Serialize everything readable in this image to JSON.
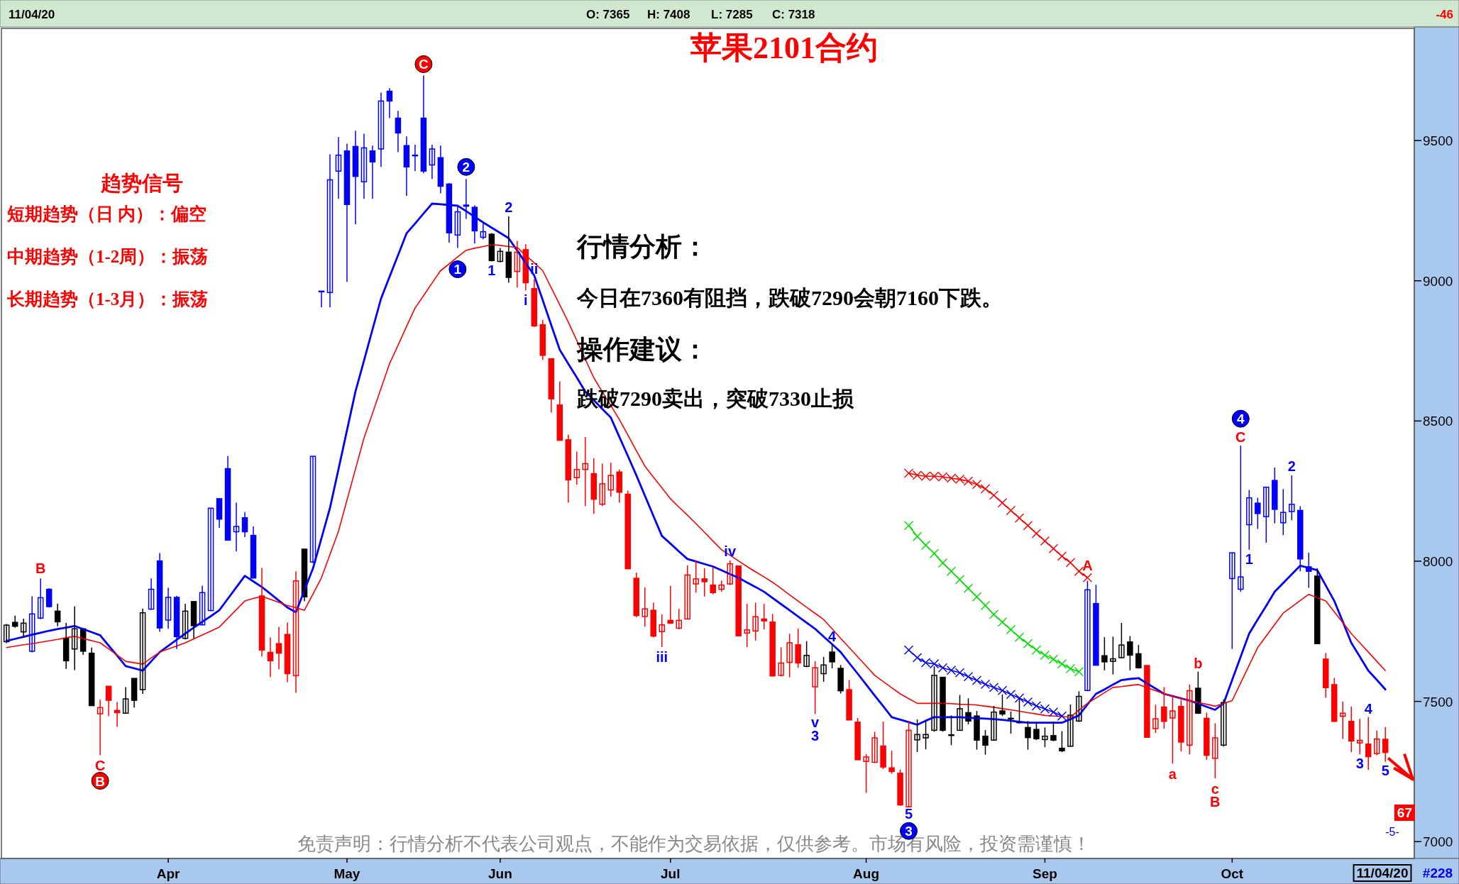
{
  "chart_data": {
    "type": "candlestick",
    "title": "苹果2101合约",
    "categories": [
      null,
      null,
      null,
      null,
      null,
      null,
      null,
      null,
      null,
      null,
      null,
      null,
      null,
      null,
      null,
      null,
      null,
      null,
      null,
      "Apr",
      null,
      null,
      null,
      null,
      null,
      null,
      null,
      null,
      null,
      null,
      null,
      null,
      null,
      null,
      null,
      null,
      null,
      null,
      null,
      null,
      "May",
      null,
      null,
      null,
      null,
      null,
      null,
      null,
      null,
      null,
      null,
      null,
      null,
      null,
      null,
      null,
      null,
      null,
      "Jun",
      null,
      null,
      null,
      null,
      null,
      null,
      null,
      null,
      null,
      null,
      null,
      null,
      null,
      null,
      null,
      null,
      null,
      null,
      null,
      "Jul",
      null,
      null,
      null,
      null,
      null,
      null,
      null,
      null,
      null,
      null,
      null,
      null,
      null,
      null,
      null,
      null,
      null,
      null,
      null,
      null,
      null,
      null,
      "Aug",
      null,
      null,
      null,
      null,
      null,
      null,
      null,
      null,
      null,
      null,
      null,
      null,
      null,
      null,
      null,
      null,
      null,
      null,
      null,
      null,
      "Sep",
      null,
      null,
      null,
      null,
      null,
      null,
      null,
      null,
      null,
      null,
      null,
      null,
      null,
      null,
      null,
      null,
      null,
      null,
      null,
      null,
      null,
      "Oct",
      null,
      null,
      null,
      null,
      null,
      null,
      null,
      null,
      null,
      null,
      null,
      null,
      null,
      null,
      null,
      null,
      null,
      null
    ],
    "ohlc": [
      [
        7713,
        7776,
        7708,
        7772
      ],
      [
        7782,
        7806,
        7763,
        7768
      ],
      [
        7748,
        7795,
        7728,
        7779
      ],
      [
        7679,
        7875,
        7675,
        7812
      ],
      [
        7797,
        7939,
        7793,
        7870
      ],
      [
        7900,
        7903,
        7835,
        7838
      ],
      [
        7822,
        7848,
        7768,
        7784
      ],
      [
        7725,
        7780,
        7616,
        7645
      ],
      [
        7687,
        7839,
        7612,
        7759
      ],
      [
        7759,
        7759,
        7666,
        7679
      ],
      [
        7672,
        7692,
        7485,
        7485
      ],
      [
        7456,
        7506,
        7308,
        7478
      ],
      [
        7554,
        7554,
        7447,
        7504
      ],
      [
        7468,
        7498,
        7409,
        7460
      ],
      [
        7458,
        7551,
        7456,
        7509
      ],
      [
        7582,
        7582,
        7478,
        7504
      ],
      [
        7542,
        7831,
        7527,
        7816
      ],
      [
        7829,
        7939,
        7827,
        7900
      ],
      [
        8001,
        8029,
        7748,
        7762
      ],
      [
        7790,
        7905,
        7759,
        7871
      ],
      [
        7871,
        7877,
        7687,
        7731
      ],
      [
        7725,
        7848,
        7721,
        7822
      ],
      [
        7856,
        7856,
        7725,
        7770
      ],
      [
        7773,
        7913,
        7772,
        7888
      ],
      [
        7824,
        8189,
        7822,
        8189
      ],
      [
        8223,
        8223,
        8119,
        8150
      ],
      [
        8330,
        8375,
        8075,
        8075
      ],
      [
        8105,
        8209,
        8035,
        8124
      ],
      [
        8155,
        8175,
        8086,
        8105
      ],
      [
        8092,
        8124,
        7940,
        7940
      ],
      [
        7876,
        7976,
        7660,
        7683
      ],
      [
        7675,
        7728,
        7587,
        7645
      ],
      [
        7706,
        7766,
        7615,
        7672
      ],
      [
        7739,
        7781,
        7569,
        7599
      ],
      [
        7592,
        7964,
        7531,
        7930
      ],
      [
        8043,
        8043,
        7857,
        7873
      ],
      [
        7997,
        8374,
        7994,
        8374
      ],
      [
        8963,
        8963,
        8905,
        8963
      ],
      [
        8958,
        9451,
        8905,
        9360
      ],
      [
        9391,
        9512,
        9292,
        9448
      ],
      [
        9463,
        9489,
        8996,
        9272
      ],
      [
        9479,
        9535,
        9201,
        9372
      ],
      [
        9353,
        9524,
        9292,
        9474
      ],
      [
        9463,
        9482,
        9292,
        9424
      ],
      [
        9470,
        9671,
        9406,
        9641
      ],
      [
        9676,
        9687,
        9580,
        9641
      ],
      [
        9580,
        9606,
        9459,
        9527
      ],
      [
        9482,
        9515,
        9303,
        9406
      ],
      [
        9448,
        9485,
        9391,
        9448
      ],
      [
        9580,
        9732,
        9383,
        9391
      ],
      [
        9413,
        9485,
        9363,
        9470
      ],
      [
        9439,
        9482,
        9312,
        9337
      ],
      [
        9345,
        9348,
        9136,
        9171
      ],
      [
        9163,
        9269,
        9117,
        9246
      ],
      [
        9270,
        9363,
        9221,
        9266
      ],
      [
        9262,
        9269,
        9133,
        9178
      ],
      [
        9155,
        9208,
        9148,
        9175
      ],
      [
        9166,
        9170,
        9069,
        9072
      ],
      [
        9069,
        9117,
        9066,
        9105
      ],
      [
        9102,
        9230,
        8993,
        9012
      ],
      [
        9033,
        9142,
        8976,
        9102
      ],
      [
        9111,
        9130,
        8966,
        8993
      ],
      [
        8972,
        9005,
        8835,
        8839
      ],
      [
        8843,
        8860,
        8718,
        8734
      ],
      [
        8722,
        8722,
        8530,
        8579
      ],
      [
        8557,
        8641,
        8431,
        8431
      ],
      [
        8433,
        8451,
        8209,
        8290
      ],
      [
        8298,
        8391,
        8273,
        8327
      ],
      [
        8327,
        8443,
        8197,
        8348
      ],
      [
        8312,
        8367,
        8169,
        8221
      ],
      [
        8203,
        8348,
        8197,
        8276
      ],
      [
        8254,
        8351,
        8230,
        8306
      ],
      [
        8318,
        8327,
        8209,
        8246
      ],
      [
        8239,
        8252,
        7973,
        7973
      ],
      [
        7939,
        7959,
        7801,
        7806
      ],
      [
        7803,
        7906,
        7767,
        7830
      ],
      [
        7825,
        7852,
        7728,
        7733
      ],
      [
        7749,
        7810,
        7694,
        7773
      ],
      [
        7789,
        7912,
        7777,
        7779
      ],
      [
        7761,
        7830,
        7757,
        7789
      ],
      [
        7794,
        7985,
        7792,
        7951
      ],
      [
        7919,
        8003,
        7888,
        7937
      ],
      [
        7937,
        7975,
        7874,
        7927
      ],
      [
        7915,
        7979,
        7882,
        7888
      ],
      [
        7900,
        7931,
        7891,
        7915
      ],
      [
        7919,
        8003,
        7915,
        7991
      ],
      [
        7983,
        7983,
        7734,
        7734
      ],
      [
        7744,
        7848,
        7693,
        7755
      ],
      [
        7751,
        7852,
        7717,
        7802
      ],
      [
        7794,
        7848,
        7757,
        7787
      ],
      [
        7783,
        7812,
        7589,
        7591
      ],
      [
        7593,
        7693,
        7589,
        7637
      ],
      [
        7639,
        7741,
        7586,
        7709
      ],
      [
        7702,
        7760,
        7620,
        7637
      ],
      [
        7625,
        7715,
        7622,
        7664
      ],
      [
        7552,
        7644,
        7455,
        7620
      ],
      [
        7599,
        7659,
        7570,
        7630
      ],
      [
        7676,
        7702,
        7618,
        7641
      ],
      [
        7618,
        7630,
        7528,
        7538
      ],
      [
        7542,
        7576,
        7434,
        7434
      ],
      [
        7426,
        7441,
        7292,
        7292
      ],
      [
        7286,
        7312,
        7174,
        7302
      ],
      [
        7283,
        7392,
        7281,
        7370
      ],
      [
        7341,
        7428,
        7259,
        7266
      ],
      [
        7263,
        7324,
        7242,
        7250
      ],
      [
        7244,
        7257,
        7128,
        7131
      ],
      [
        7124,
        7431,
        7124,
        7397
      ],
      [
        7363,
        7436,
        7320,
        7382
      ],
      [
        7370,
        7428,
        7329,
        7382
      ],
      [
        7397,
        7625,
        7392,
        7593
      ],
      [
        7586,
        7586,
        7392,
        7397
      ],
      [
        7381,
        7450,
        7344,
        7379
      ],
      [
        7397,
        7523,
        7395,
        7474
      ],
      [
        7460,
        7511,
        7418,
        7430
      ],
      [
        7448,
        7466,
        7328,
        7362
      ],
      [
        7376,
        7398,
        7310,
        7344
      ],
      [
        7362,
        7484,
        7360,
        7462
      ],
      [
        7466,
        7525,
        7448,
        7455
      ],
      [
        7439,
        7464,
        7385,
        7440
      ],
      [
        7427,
        7511,
        7421,
        7424
      ],
      [
        7407,
        7430,
        7328,
        7371
      ],
      [
        7400,
        7426,
        7362,
        7367
      ],
      [
        7364,
        7407,
        7337,
        7376
      ],
      [
        7378,
        7427,
        7358,
        7362
      ],
      [
        7333,
        7394,
        7319,
        7324
      ],
      [
        7340,
        7489,
        7340,
        7451
      ],
      [
        7430,
        7536,
        7427,
        7518
      ],
      [
        7539,
        7930,
        7536,
        7898
      ],
      [
        7849,
        7916,
        7629,
        7629
      ],
      [
        7663,
        7729,
        7611,
        7641
      ],
      [
        7643,
        7731,
        7596,
        7652
      ],
      [
        7656,
        7780,
        7653,
        7701
      ],
      [
        7712,
        7733,
        7611,
        7665
      ],
      [
        7670,
        7701,
        7617,
        7620
      ],
      [
        7628,
        7628,
        7370,
        7372
      ],
      [
        7403,
        7488,
        7388,
        7438
      ],
      [
        7480,
        7551,
        7403,
        7429
      ],
      [
        7441,
        7516,
        7278,
        7466
      ],
      [
        7482,
        7505,
        7322,
        7355
      ],
      [
        7344,
        7560,
        7311,
        7538
      ],
      [
        7547,
        7606,
        7455,
        7458
      ],
      [
        7440,
        7460,
        7292,
        7308
      ],
      [
        7297,
        7422,
        7226,
        7370
      ],
      [
        7344,
        7507,
        7339,
        7496
      ],
      [
        7938,
        8030,
        7687,
        8030
      ],
      [
        7900,
        8412,
        7891,
        7944
      ],
      [
        8130,
        8254,
        8041,
        8226
      ],
      [
        8207,
        8226,
        8115,
        8170
      ],
      [
        8159,
        8264,
        8066,
        8264
      ],
      [
        8288,
        8334,
        8135,
        8185
      ],
      [
        8137,
        8257,
        8093,
        8174
      ],
      [
        8177,
        8306,
        8146,
        8203
      ],
      [
        8181,
        8196,
        7964,
        8008
      ],
      [
        7980,
        8030,
        7905,
        7964
      ],
      [
        7947,
        7975,
        7704,
        7706
      ],
      [
        7651,
        7673,
        7513,
        7549
      ],
      [
        7560,
        7584,
        7427,
        7429
      ],
      [
        7447,
        7499,
        7366,
        7458
      ],
      [
        7429,
        7482,
        7319,
        7359
      ],
      [
        7352,
        7438,
        7311,
        7361
      ],
      [
        7348,
        7444,
        7256,
        7303
      ],
      [
        7314,
        7396,
        7308,
        7366
      ],
      [
        7365,
        7408,
        7285,
        7318
      ]
    ],
    "colors": [
      "#000000",
      "#000000",
      "#000000",
      "#0000ff",
      "#0000ff",
      "#0000ff",
      "#000000",
      "#000000",
      "#000000",
      "#000000",
      "#000000",
      "#ff0000",
      "#ff0000",
      "#ff0000",
      "#000000",
      "#000000",
      "#000000",
      "#0000ff",
      "#0000ff",
      "#0000ff",
      "#0000ff",
      "#000000",
      "#000000",
      "#0000ff",
      "#0000ff",
      "#0000ff",
      "#0000ff",
      "#0000ff",
      "#0000ff",
      "#0000ff",
      "#ff0000",
      "#ff0000",
      "#ff0000",
      "#ff0000",
      "#ff0000",
      "#000000",
      "#0000ff",
      "#0000ff",
      "#0000ff",
      "#0000ff",
      "#0000ff",
      "#0000ff",
      "#0000ff",
      "#0000ff",
      "#0000ff",
      "#0000ff",
      "#0000ff",
      "#0000ff",
      "#0000ff",
      "#0000ff",
      "#0000ff",
      "#0000ff",
      "#0000ff",
      "#0000ff",
      "#0000ff",
      "#0000ff",
      "#0000ff",
      "#000000",
      "#000000",
      "#000000",
      "#ff0000",
      "#ff0000",
      "#ff0000",
      "#ff0000",
      "#ff0000",
      "#ff0000",
      "#ff0000",
      "#ff0000",
      "#ff0000",
      "#ff0000",
      "#ff0000",
      "#ff0000",
      "#ff0000",
      "#ff0000",
      "#ff0000",
      "#ff0000",
      "#ff0000",
      "#ff0000",
      "#ff0000",
      "#ff0000",
      "#ff0000",
      "#ff0000",
      "#ff0000",
      "#ff0000",
      "#ff0000",
      "#ff0000",
      "#ff0000",
      "#ff0000",
      "#ff0000",
      "#ff0000",
      "#ff0000",
      "#ff0000",
      "#ff0000",
      "#ff0000",
      "#000000",
      "#ff0000",
      "#000000",
      "#000000",
      "#000000",
      "#ff0000",
      "#ff0000",
      "#ff0000",
      "#ff0000",
      "#ff0000",
      "#ff0000",
      "#ff0000",
      "#ff0000",
      "#000000",
      "#000000",
      "#000000",
      "#000000",
      "#000000",
      "#000000",
      "#000000",
      "#000000",
      "#000000",
      "#000000",
      "#000000",
      "#000000",
      "#000000",
      "#000000",
      "#000000",
      "#000000",
      "#000000",
      "#000000",
      "#000000",
      "#000000",
      "#0000ff",
      "#0000ff",
      "#000000",
      "#000000",
      "#000000",
      "#000000",
      "#000000",
      "#ff0000",
      "#ff0000",
      "#ff0000",
      "#ff0000",
      "#ff0000",
      "#ff0000",
      "#000000",
      "#ff0000",
      "#ff0000",
      "#000000",
      "#0000ff",
      "#0000ff",
      "#0000ff",
      "#0000ff",
      "#0000ff",
      "#0000ff",
      "#0000ff",
      "#0000ff",
      "#0000ff",
      "#0000ff",
      "#000000",
      "#ff0000",
      "#ff0000",
      "#ff0000",
      "#ff0000",
      "#ff0000",
      "#ff0000",
      "#ff0000",
      "#ff0000"
    ],
    "series": [
      {
        "type": "line",
        "color": "#0000ff",
        "values": [
          7716,
          7723,
          7730,
          7738,
          7745,
          7752,
          7758,
          7763,
          7769,
          7758,
          7747,
          7736,
          7699,
          7663,
          7626,
          7618,
          7610,
          7643,
          7676,
          7698,
          7720,
          7742,
          7763,
          7784,
          7804,
          7825,
          7866,
          7907,
          7948,
          7928,
          7908,
          7884,
          7859,
          7835,
          7818,
          7896,
          7974,
          8082,
          8190,
          8328,
          8467,
          8605,
          8715,
          8826,
          8936,
          9014,
          9091,
          9169,
          9204,
          9240,
          9275,
          9273,
          9270,
          9268,
          9248,
          9228,
          9208,
          9189,
          9171,
          9152,
          9108,
          9063,
          9019,
          8931,
          8842,
          8754,
          8704,
          8655,
          8605,
          8574,
          8543,
          8512,
          8443,
          8375,
          8306,
          8234,
          8162,
          8090,
          8063,
          8035,
          8008,
          7999,
          7990,
          7981,
          7968,
          7954,
          7941,
          7924,
          7908,
          7891,
          7869,
          7847,
          7825,
          7803,
          7781,
          7759,
          7731,
          7704,
          7676,
          7637,
          7599,
          7560,
          7521,
          7483,
          7444,
          7435,
          7426,
          7417,
          7431,
          7444,
          7444,
          7444,
          7444,
          7442,
          7440,
          7439,
          7437,
          7434,
          7431,
          7427,
          7424,
          7424,
          7424,
          7424,
          7424,
          7437,
          7450,
          7489,
          7527,
          7543,
          7560,
          7576,
          7580,
          7583,
          7564,
          7546,
          7527,
          7519,
          7511,
          7503,
          7492,
          7481,
          7470,
          7493,
          7576,
          7659,
          7742,
          7792,
          7841,
          7891,
          7922,
          7953,
          7984,
          7976,
          7968,
          7913,
          7858,
          7784,
          7709,
          7660,
          7610,
          7577,
          7543
        ]
      },
      {
        "type": "line",
        "color": "#ff0000",
        "values": [
          7692,
          7697,
          7702,
          7706,
          7711,
          7716,
          7721,
          7727,
          7732,
          7724,
          7717,
          7709,
          7687,
          7665,
          7643,
          7638,
          7633,
          7655,
          7676,
          7687,
          7698,
          7709,
          7723,
          7737,
          7751,
          7765,
          7796,
          7827,
          7858,
          7867,
          7875,
          7864,
          7853,
          7842,
          7834,
          7825,
          7883,
          7941,
          8024,
          8107,
          8218,
          8328,
          8439,
          8527,
          8616,
          8704,
          8770,
          8837,
          8903,
          8947,
          8992,
          9036,
          9060,
          9085,
          9109,
          9116,
          9122,
          9129,
          9126,
          9122,
          9119,
          9091,
          9064,
          9036,
          8975,
          8914,
          8853,
          8787,
          8720,
          8654,
          8604,
          8555,
          8505,
          8450,
          8394,
          8339,
          8300,
          8262,
          8223,
          8193,
          8164,
          8134,
          8103,
          8072,
          8041,
          8021,
          8001,
          7981,
          7962,
          7944,
          7925,
          7903,
          7880,
          7858,
          7836,
          7814,
          7792,
          7759,
          7725,
          7692,
          7659,
          7626,
          7593,
          7571,
          7549,
          7527,
          7510,
          7493,
          7493,
          7493,
          7493,
          7492,
          7490,
          7489,
          7487,
          7483,
          7479,
          7474,
          7470,
          7465,
          7460,
          7455,
          7450,
          7448,
          7446,
          7444,
          7469,
          7493,
          7512,
          7531,
          7550,
          7553,
          7557,
          7560,
          7549,
          7538,
          7527,
          7519,
          7511,
          7503,
          7496,
          7490,
          7483,
          7493,
          7503,
          7566,
          7629,
          7692,
          7733,
          7774,
          7815,
          7837,
          7860,
          7882,
          7870,
          7858,
          7819,
          7781,
          7742,
          7709,
          7676,
          7643,
          7610
        ]
      },
      {
        "type": "line",
        "color": "#ff0000",
        "marker": "cross",
        "values": [
          null,
          null,
          null,
          null,
          null,
          null,
          null,
          null,
          null,
          null,
          null,
          null,
          null,
          null,
          null,
          null,
          null,
          null,
          null,
          null,
          null,
          null,
          null,
          null,
          null,
          null,
          null,
          null,
          null,
          null,
          null,
          null,
          null,
          null,
          null,
          null,
          null,
          null,
          null,
          null,
          null,
          null,
          null,
          null,
          null,
          null,
          null,
          null,
          null,
          null,
          null,
          null,
          null,
          null,
          null,
          null,
          null,
          null,
          null,
          null,
          null,
          null,
          null,
          null,
          null,
          null,
          null,
          null,
          null,
          null,
          null,
          null,
          null,
          null,
          null,
          null,
          null,
          null,
          null,
          null,
          null,
          null,
          null,
          null,
          null,
          null,
          null,
          null,
          null,
          null,
          null,
          null,
          null,
          null,
          null,
          null,
          null,
          null,
          null,
          null,
          null,
          null,
          null,
          null,
          null,
          null,
          8314,
          8307,
          8303,
          8303,
          8301,
          8296,
          8292,
          8285,
          8274,
          8258,
          8235,
          8208,
          8181,
          8154,
          8127,
          8099,
          8072,
          8045,
          8018,
          7995,
          7964,
          7941,
          null,
          null,
          null,
          null,
          null,
          null,
          null,
          null,
          null,
          null,
          null,
          null,
          null,
          null,
          null,
          null,
          null,
          null,
          null,
          null,
          null,
          null,
          null,
          null,
          null,
          null,
          null,
          null,
          null,
          null,
          null,
          null,
          null,
          null,
          null
        ]
      },
      {
        "type": "line",
        "color": "#00e000",
        "marker": "cross",
        "values": [
          null,
          null,
          null,
          null,
          null,
          null,
          null,
          null,
          null,
          null,
          null,
          null,
          null,
          null,
          null,
          null,
          null,
          null,
          null,
          null,
          null,
          null,
          null,
          null,
          null,
          null,
          null,
          null,
          null,
          null,
          null,
          null,
          null,
          null,
          null,
          null,
          null,
          null,
          null,
          null,
          null,
          null,
          null,
          null,
          null,
          null,
          null,
          null,
          null,
          null,
          null,
          null,
          null,
          null,
          null,
          null,
          null,
          null,
          null,
          null,
          null,
          null,
          null,
          null,
          null,
          null,
          null,
          null,
          null,
          null,
          null,
          null,
          null,
          null,
          null,
          null,
          null,
          null,
          null,
          null,
          null,
          null,
          null,
          null,
          null,
          null,
          null,
          null,
          null,
          null,
          null,
          null,
          null,
          null,
          null,
          null,
          null,
          null,
          null,
          null,
          null,
          null,
          null,
          null,
          null,
          null,
          8127,
          8088,
          8057,
          8027,
          7994,
          7964,
          7934,
          7903,
          7873,
          7842,
          7810,
          7783,
          7756,
          7729,
          7706,
          7683,
          7665,
          7650,
          7634,
          7617,
          7606,
          null,
          null,
          null,
          null,
          null,
          null,
          null,
          null,
          null,
          null,
          null,
          null,
          null,
          null,
          null,
          null,
          null,
          null,
          null,
          null,
          null,
          null,
          null,
          null,
          null,
          null,
          null,
          null,
          null,
          null,
          null,
          null,
          null,
          null,
          null,
          null
        ]
      },
      {
        "type": "line",
        "color": "#0000ff",
        "marker": "cross",
        "values": [
          null,
          null,
          null,
          null,
          null,
          null,
          null,
          null,
          null,
          null,
          null,
          null,
          null,
          null,
          null,
          null,
          null,
          null,
          null,
          null,
          null,
          null,
          null,
          null,
          null,
          null,
          null,
          null,
          null,
          null,
          null,
          null,
          null,
          null,
          null,
          null,
          null,
          null,
          null,
          null,
          null,
          null,
          null,
          null,
          null,
          null,
          null,
          null,
          null,
          null,
          null,
          null,
          null,
          null,
          null,
          null,
          null,
          null,
          null,
          null,
          null,
          null,
          null,
          null,
          null,
          null,
          null,
          null,
          null,
          null,
          null,
          null,
          null,
          null,
          null,
          null,
          null,
          null,
          null,
          null,
          null,
          null,
          null,
          null,
          null,
          null,
          null,
          null,
          null,
          null,
          null,
          null,
          null,
          null,
          null,
          null,
          null,
          null,
          null,
          null,
          null,
          null,
          null,
          null,
          null,
          null,
          7683,
          7656,
          7638,
          7634,
          7620,
          7611,
          7602,
          7588,
          7575,
          7561,
          7550,
          7539,
          7525,
          7512,
          7498,
          7484,
          7473,
          7462,
          7448,
          null,
          null,
          null,
          null,
          null,
          null,
          null,
          null,
          null,
          null,
          null,
          null,
          null,
          null,
          null,
          null,
          null,
          null,
          null,
          null,
          null,
          null,
          null,
          null,
          null,
          null,
          null,
          null,
          null,
          null,
          null,
          null,
          null,
          null,
          null,
          null,
          null,
          null
        ]
      }
    ],
    "ylim": [
      6940,
      9900
    ],
    "yticks": [
      7000,
      7500,
      8000,
      8500,
      9000,
      9500
    ],
    "annotations": [
      "11/04/20",
      "O: 7365",
      "H: 7408",
      "L: 7285",
      "C: 7318",
      "-46",
      "趋势信号",
      "短期趋势（日 内）：偏空",
      "中期趋势（1-2周）：振荡",
      "长期趋势（1-3月）：振荡",
      "行情分析：",
      "今日在7360有阻挡，跌破7290会朝7160下跌。",
      "操作建议：",
      "跌破7290卖出，突破7330止损",
      "免责声明：行情分析不代表公司观点，不能作为交易依据，仅供参考。市场有风险，投资需谨慎！",
      "11/04/20",
      "#228",
      "67",
      "-5-",
      "B",
      "C",
      "B",
      "C",
      "2",
      "1",
      "1",
      "2",
      "ii",
      "i",
      "iii",
      "iv",
      "4",
      "v",
      "3",
      "5",
      "3",
      "A",
      "a",
      "b",
      "c",
      "B",
      "4",
      "C",
      "1",
      "2",
      "4",
      "3",
      "5"
    ]
  }
}
